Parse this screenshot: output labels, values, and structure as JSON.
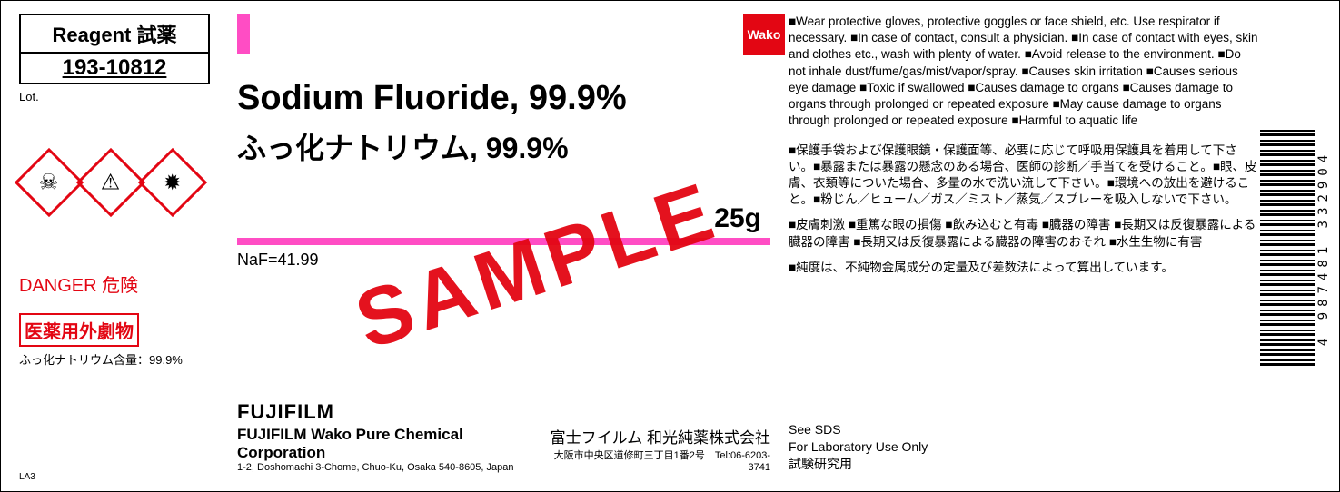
{
  "colors": {
    "accent_pink": "#ff4dc4",
    "hazard_red": "#e30613",
    "text": "#000000",
    "background": "#ffffff"
  },
  "left": {
    "reagent_label": "Reagent 試薬",
    "catalog_no": "193-10812",
    "lot_label": "Lot.",
    "danger": "DANGER 危険",
    "deleterious": "医薬用外劇物",
    "content_line": "ふっ化ナトリウム含量：99.9%",
    "la3": "LA3",
    "ghs_icons": [
      "☠",
      "⚠",
      "✹"
    ]
  },
  "mid": {
    "name_en": "Sodium Fluoride, 99.9%",
    "name_jp": "ふっ化ナトリウム, 99.9%",
    "quantity": "25g",
    "formula": "NaF=41.99",
    "watermark": "SAMPLE",
    "company": {
      "logo": "FUJIFILM",
      "name_en": "FUJIFILM Wako Pure Chemical Corporation",
      "addr_en": "1-2, Doshomachi 3-Chome, Chuo-Ku, Osaka 540-8605, Japan",
      "name_jp": "富士フイルム 和光純薬株式会社",
      "addr_jp": "大阪市中央区道修町三丁目1番2号　Tel:06-6203-3741"
    }
  },
  "right": {
    "wako": "Wako",
    "haz_en": "■Wear protective gloves, protective goggles or face shield, etc. Use respirator if necessary. ■In case of contact, consult a physician. ■In case of contact with eyes, skin and clothes etc., wash with plenty of water. ■Avoid release to the environment. ■Do not inhale dust/fume/gas/mist/vapor/spray. ■Causes skin irritation ■Causes serious eye damage ■Toxic if swallowed ■Causes damage to organs ■Causes damage to organs through prolonged or repeated exposure ■May cause damage to organs through prolonged or repeated exposure ■Harmful to aquatic life",
    "haz_jp1": "■保護手袋および保護眼鏡・保護面等、必要に応じて呼吸用保護具を着用して下さい。■暴露または暴露の懸念のある場合、医師の診断／手当てを受けること。■眼、皮膚、衣類等についた場合、多量の水で洗い流して下さい。■環境への放出を避けること。■粉じん／ヒューム／ガス／ミスト／蒸気／スプレーを吸入しないで下さい。",
    "haz_jp2": "■皮膚刺激 ■重篤な眼の損傷 ■飲み込むと有毒 ■臓器の障害 ■長期又は反復暴露による臓器の障害 ■長期又は反復暴露による臓器の障害のおそれ ■水生生物に有害",
    "haz_jp3": "■純度は、不純物金属成分の定量及び差数法によって算出しています。",
    "sds": "See SDS",
    "lab_use": "For Laboratory Use Only",
    "lab_use_jp": "試験研究用"
  },
  "barcode": {
    "number": "4 987481 332904"
  }
}
